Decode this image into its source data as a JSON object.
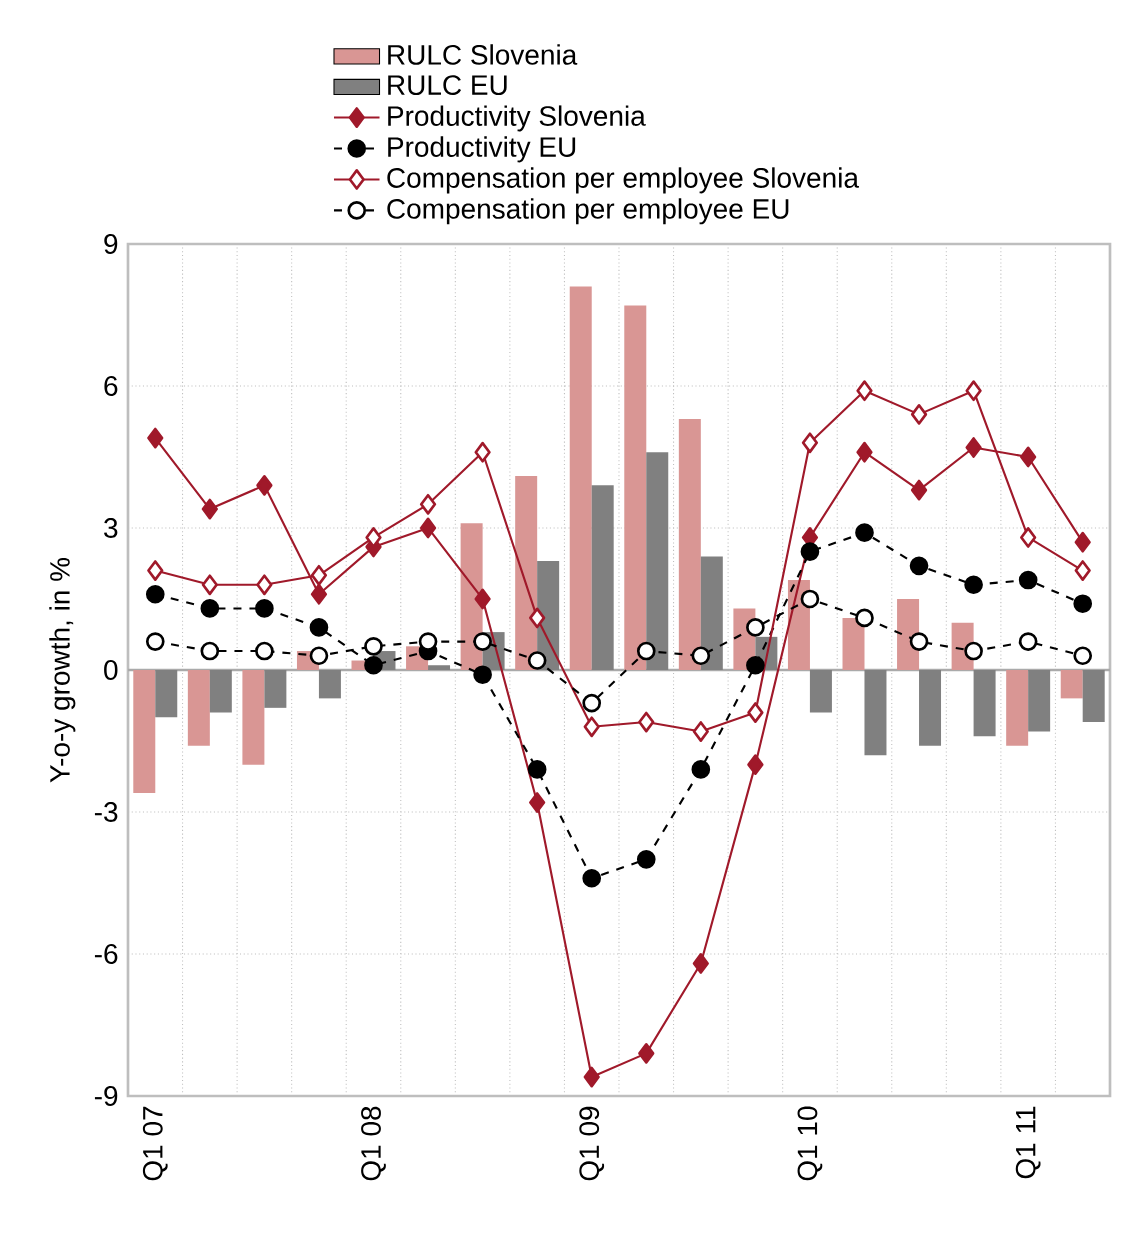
{
  "chart_data": {
    "type": "bar",
    "ylabel": "Y-o-y growth, in %",
    "categories": [
      "Q1 07",
      null,
      null,
      null,
      "Q1 08",
      null,
      null,
      null,
      "Q1 09",
      null,
      null,
      null,
      "Q1 10",
      null,
      null,
      null,
      "Q1 11",
      null
    ],
    "ylim": [
      -9,
      9
    ],
    "yticks": [
      -9,
      -6,
      -3,
      0,
      3,
      6,
      9
    ],
    "grid": true,
    "legend": "top",
    "series": [
      {
        "name": "RULC Slovenia",
        "color": "#d99694",
        "values": [
          -2.6,
          -1.6,
          -2.0,
          0.4,
          0.2,
          0.5,
          3.1,
          4.1,
          8.1,
          7.7,
          5.3,
          1.3,
          1.9,
          1.1,
          1.5,
          1.0,
          -1.6,
          -0.6
        ]
      },
      {
        "name": "RULC EU",
        "color": "#808080",
        "values": [
          -1.0,
          -0.9,
          -0.8,
          -0.6,
          0.4,
          0.1,
          0.8,
          2.3,
          3.9,
          4.6,
          2.4,
          0.7,
          -0.9,
          -1.8,
          -1.6,
          -1.4,
          -1.3,
          -1.1
        ]
      },
      {
        "name": "Productivity Slovenia",
        "type": "line",
        "color": "#a0192a",
        "marker": "diamond",
        "line_style": "solid",
        "values": [
          4.9,
          3.4,
          3.9,
          1.6,
          2.6,
          3.0,
          1.5,
          -2.8,
          -8.6,
          -8.1,
          -6.2,
          -2.0,
          2.8,
          4.6,
          3.8,
          4.7,
          4.5,
          2.7
        ]
      },
      {
        "name": "Productivity EU",
        "type": "line",
        "color": "#000000",
        "marker": "circle",
        "line_style": "dashed",
        "values": [
          1.6,
          1.3,
          1.3,
          0.9,
          0.1,
          0.4,
          -0.1,
          -2.1,
          -4.4,
          -4.0,
          -2.1,
          0.1,
          2.5,
          2.9,
          2.2,
          1.8,
          1.9,
          1.4
        ]
      },
      {
        "name": "Compensation per employee Slovenia",
        "type": "line",
        "color": "#a0192a",
        "marker": "diamond",
        "line_style": "solid",
        "values": [
          2.1,
          1.8,
          1.8,
          2.0,
          2.8,
          3.5,
          4.6,
          1.1,
          -1.2,
          -1.1,
          -1.3,
          -0.9,
          4.8,
          5.9,
          5.4,
          5.9,
          2.8,
          2.1
        ]
      },
      {
        "name": "Compensation per employee EU",
        "type": "line",
        "color": "#000000",
        "marker": "circle",
        "line_style": "dashed",
        "values": [
          0.6,
          0.4,
          0.4,
          0.3,
          0.5,
          0.6,
          0.6,
          0.2,
          -0.7,
          0.4,
          0.3,
          0.9,
          1.5,
          1.1,
          0.6,
          0.4,
          0.6,
          0.3
        ]
      }
    ]
  }
}
